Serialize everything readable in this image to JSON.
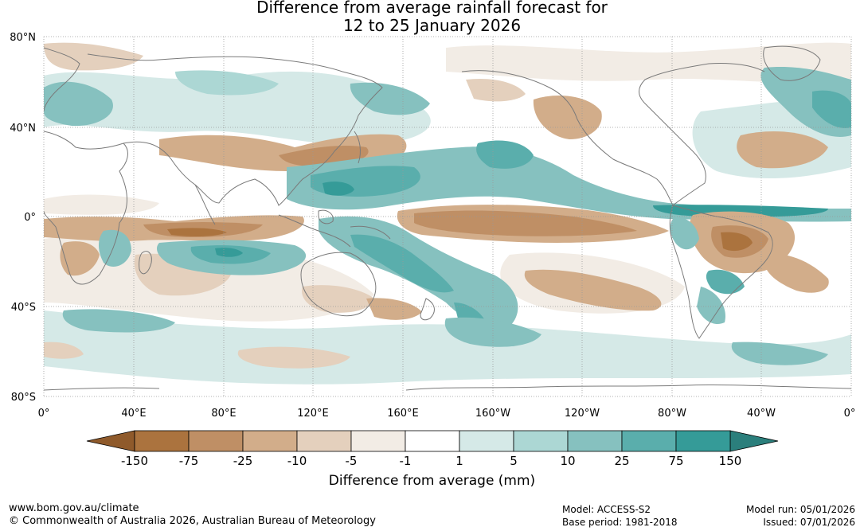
{
  "title": {
    "line1": "Difference from average rainfall forecast for",
    "line2": "12 to 25 January 2026"
  },
  "map": {
    "lat_labels": [
      "80°N",
      "40°N",
      "0°",
      "40°S",
      "80°S"
    ],
    "lon_labels": [
      "0°",
      "40°E",
      "80°E",
      "120°E",
      "160°E",
      "160°W",
      "120°W",
      "80°W",
      "40°W",
      "0°"
    ]
  },
  "colorbar": {
    "ticks": [
      "-150",
      "-75",
      "-25",
      "-10",
      "-5",
      "-1",
      "1",
      "5",
      "10",
      "25",
      "75",
      "150"
    ],
    "colors": [
      "#8f5a2b",
      "#ab733e",
      "#bf8f65",
      "#d2ad8a",
      "#e4d0bd",
      "#f2ece5",
      "#ffffff",
      "#d5e9e7",
      "#acd7d4",
      "#86c1bf",
      "#5aaeac",
      "#359b98",
      "#2b7f7c"
    ],
    "title": "Difference from average (mm)"
  },
  "footer": {
    "website": "www.bom.gov.au/climate",
    "copyright": "© Commonwealth of Australia 2026, Australian Bureau of Meteorology",
    "model": "Model: ACCESS-S2",
    "base_period": "Base period: 1981-2018",
    "model_run": "Model run: 05/01/2026",
    "issued": "Issued: 07/01/2026"
  }
}
